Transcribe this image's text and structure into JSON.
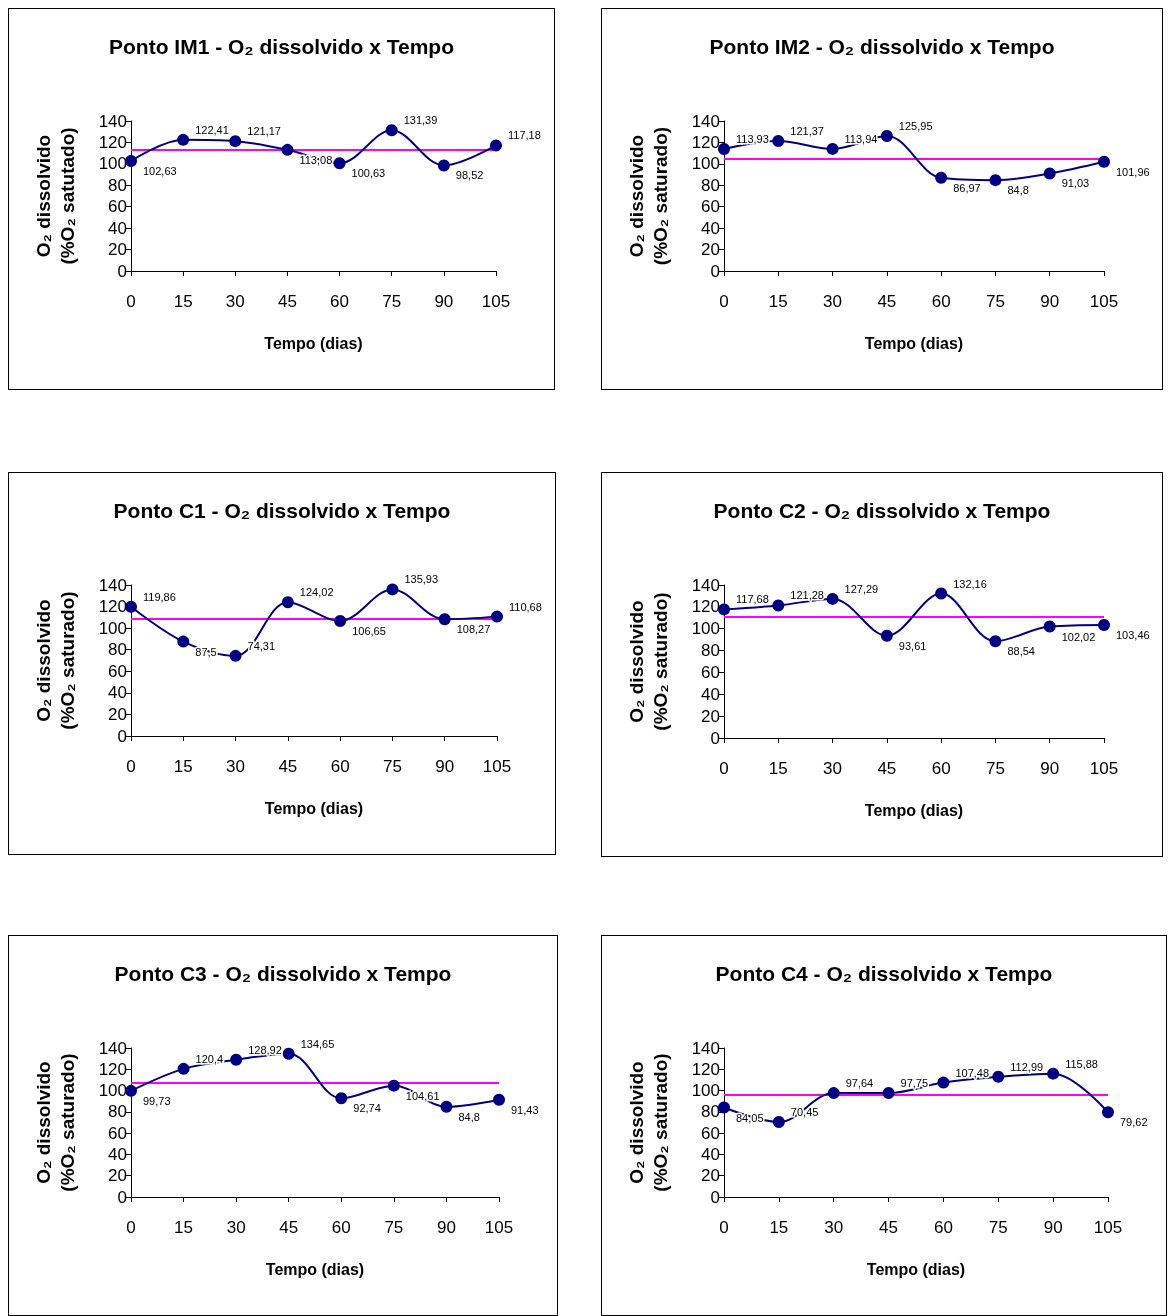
{
  "chart_data": [
    {
      "type": "line",
      "title": "Ponto IM1 - O₂ dissolvido x Tempo",
      "xlabel": "Tempo (dias)",
      "ylabel": "O₂ dissolvido\n(%O₂ satutado)",
      "x": [
        0,
        15,
        30,
        45,
        60,
        75,
        90,
        105
      ],
      "xlim": [
        0,
        105
      ],
      "xticks": [
        0,
        15,
        30,
        45,
        60,
        75,
        90,
        105
      ],
      "ylim": [
        0,
        140
      ],
      "yticks": [
        0,
        20,
        40,
        60,
        80,
        100,
        120,
        140
      ],
      "grid": false,
      "marker": "circle",
      "line_style": "solid",
      "series": [
        {
          "color": "#000080",
          "values": [
            102.63,
            122.41,
            121.17,
            113.08,
            100.63,
            131.39,
            98.52,
            117.18
          ],
          "value_labels": [
            "102,63",
            "122,41",
            "121,17",
            "113,08",
            "100,63",
            "131,39",
            "98,52",
            "117,18"
          ]
        }
      ],
      "ref_lines": [
        {
          "axis": "y",
          "value": 113.4,
          "color": "#ff00ff",
          "line_style": "solid"
        }
      ]
    },
    {
      "type": "line",
      "title": "Ponto IM2 - O₂ dissolvido x Tempo",
      "xlabel": "Tempo (dias)",
      "ylabel": "O₂ dissolvido\n(%O₂ saturado)",
      "x": [
        0,
        15,
        30,
        45,
        60,
        75,
        90,
        105
      ],
      "xlim": [
        0,
        105
      ],
      "xticks": [
        0,
        15,
        30,
        45,
        60,
        75,
        90,
        105
      ],
      "ylim": [
        0,
        140
      ],
      "yticks": [
        0,
        20,
        40,
        60,
        80,
        100,
        120,
        140
      ],
      "grid": false,
      "marker": "circle",
      "line_style": "solid",
      "series": [
        {
          "color": "#000080",
          "values": [
            113.93,
            121.37,
            113.94,
            125.95,
            86.97,
            84.8,
            91.03,
            101.96
          ],
          "value_labels": [
            "113,93",
            "121,37",
            "113,94",
            "125,95",
            "86,97",
            "84,8",
            "91,03",
            "101,96"
          ]
        }
      ],
      "ref_lines": [
        {
          "axis": "y",
          "value": 105.0,
          "color": "#ff00ff",
          "line_style": "solid"
        }
      ]
    },
    {
      "type": "line",
      "title": "Ponto C1 - O₂ dissolvido x Tempo",
      "xlabel": "Tempo (dias)",
      "ylabel": "O₂ dissolvido\n(%O₂ saturado)",
      "x": [
        0,
        15,
        30,
        45,
        60,
        75,
        90,
        105
      ],
      "xlim": [
        0,
        105
      ],
      "xticks": [
        0,
        15,
        30,
        45,
        60,
        75,
        90,
        105
      ],
      "ylim": [
        0,
        140
      ],
      "yticks": [
        0,
        20,
        40,
        60,
        80,
        100,
        120,
        140
      ],
      "grid": false,
      "marker": "circle",
      "line_style": "solid",
      "series": [
        {
          "color": "#000080",
          "values": [
            119.86,
            87.5,
            74.31,
            124.02,
            106.65,
            135.93,
            108.27,
            110.68
          ],
          "value_labels": [
            "119,86",
            "87,5",
            "74,31",
            "124,02",
            "106,65",
            "135,93",
            "108,27",
            "110,68"
          ]
        }
      ],
      "ref_lines": [
        {
          "axis": "y",
          "value": 108.4,
          "color": "#ff00ff",
          "line_style": "solid"
        }
      ]
    },
    {
      "type": "line",
      "title": "Ponto C2 - O₂ dissolvido x Tempo",
      "xlabel": "Tempo (dias)",
      "ylabel": "O₂ dissolvido\n(%O₂ saturado)",
      "x": [
        0,
        15,
        30,
        45,
        60,
        75,
        90,
        105
      ],
      "xlim": [
        0,
        105
      ],
      "xticks": [
        0,
        15,
        30,
        45,
        60,
        75,
        90,
        105
      ],
      "ylim": [
        0,
        140
      ],
      "yticks": [
        0,
        20,
        40,
        60,
        80,
        100,
        120,
        140
      ],
      "grid": false,
      "marker": "circle",
      "line_style": "solid",
      "series": [
        {
          "color": "#000080",
          "values": [
            117.68,
            121.28,
            127.29,
            93.61,
            132.16,
            88.54,
            102.02,
            103.46
          ],
          "value_labels": [
            "117,68",
            "121,28",
            "127,29",
            "93,61",
            "132,16",
            "88,54",
            "102,02",
            "103,46"
          ]
        }
      ],
      "ref_lines": [
        {
          "axis": "y",
          "value": 110.8,
          "color": "#ff00ff",
          "line_style": "solid"
        }
      ]
    },
    {
      "type": "line",
      "title": "Ponto C3 - O₂ dissolvido x Tempo",
      "xlabel": "Tempo (dias)",
      "ylabel": "O₂ dissolvido\n(%O₂ saturado)",
      "x": [
        0,
        15,
        30,
        45,
        60,
        75,
        90,
        105
      ],
      "xlim": [
        0,
        105
      ],
      "xticks": [
        0,
        15,
        30,
        45,
        60,
        75,
        90,
        105
      ],
      "ylim": [
        0,
        140
      ],
      "yticks": [
        0,
        20,
        40,
        60,
        80,
        100,
        120,
        140
      ],
      "grid": false,
      "marker": "circle",
      "line_style": "solid",
      "series": [
        {
          "color": "#000080",
          "values": [
            99.73,
            120.4,
            128.92,
            134.65,
            92.74,
            104.61,
            84.8,
            91.43
          ],
          "value_labels": [
            "99,73",
            "120,4",
            "128,92",
            "134,65",
            "92,74",
            "104,61",
            "84,8",
            "91,43"
          ]
        }
      ],
      "ref_lines": [
        {
          "axis": "y",
          "value": 107.2,
          "color": "#ff00ff",
          "line_style": "solid"
        }
      ]
    },
    {
      "type": "line",
      "title": "Ponto C4 - O₂ dissolvido x Tempo",
      "xlabel": "Tempo (dias)",
      "ylabel": "O₂ dissolvido\n(%O₂ saturado)",
      "x": [
        0,
        15,
        30,
        45,
        60,
        75,
        90,
        105
      ],
      "xlim": [
        0,
        105
      ],
      "xticks": [
        0,
        15,
        30,
        45,
        60,
        75,
        90,
        105
      ],
      "ylim": [
        0,
        140
      ],
      "yticks": [
        0,
        20,
        40,
        60,
        80,
        100,
        120,
        140
      ],
      "grid": false,
      "marker": "circle",
      "line_style": "solid",
      "series": [
        {
          "color": "#000080",
          "values": [
            84.05,
            70.45,
            97.64,
            97.75,
            107.48,
            112.99,
            115.88,
            79.62
          ],
          "value_labels": [
            "84,05",
            "70,45",
            "97,64",
            "97,75",
            "107,48",
            "112,99",
            "115,88",
            "79,62"
          ]
        }
      ],
      "ref_lines": [
        {
          "axis": "y",
          "value": 95.7,
          "color": "#ff00ff",
          "line_style": "solid"
        }
      ]
    }
  ]
}
